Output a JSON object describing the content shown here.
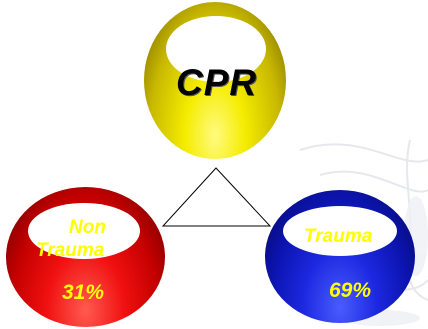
{
  "nodes": {
    "top": {
      "label": "CPR",
      "color": "#f5ec00"
    },
    "left": {
      "label_line1": "Non",
      "label_line2": "Trauma",
      "percent": "31%",
      "color": "#f01010"
    },
    "right": {
      "label": "Trauma",
      "percent": "69%",
      "color": "#1c28e0"
    }
  },
  "text_color": "#ffff00"
}
